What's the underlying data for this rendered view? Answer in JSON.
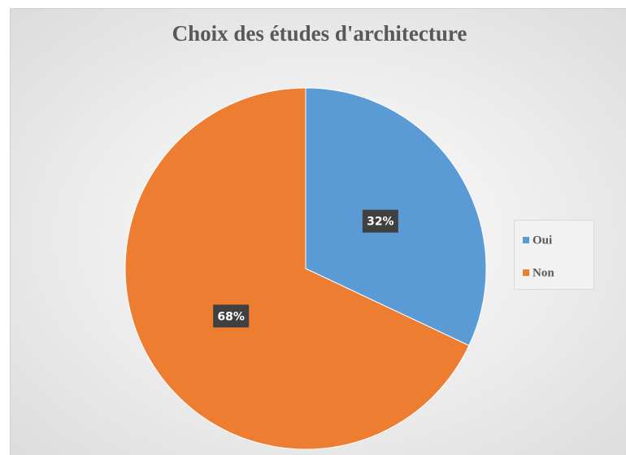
{
  "chart_data": {
    "type": "pie",
    "title": "Choix des études d'architecture",
    "categories": [
      "Oui",
      "Non"
    ],
    "values": [
      32,
      68
    ],
    "value_labels": [
      "32%",
      "68%"
    ],
    "colors": [
      "#5b9bd5",
      "#ed7d31"
    ],
    "legend": "right"
  }
}
